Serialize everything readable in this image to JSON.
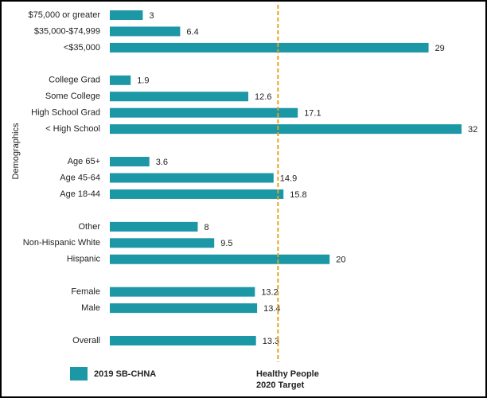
{
  "chart_data": {
    "type": "barh",
    "ylabel": "Demographics",
    "categories": [
      "$75,000 or greater",
      "$35,000-$74,999",
      "<$35,000",
      null,
      "College Grad",
      "Some College",
      "High School Grad",
      "< High School",
      null,
      "Age 65+",
      "Age 45-64",
      "Age 18-44",
      null,
      "Other",
      "Non-Hispanic White",
      "Hispanic",
      null,
      "Female",
      "Male",
      null,
      "Overall"
    ],
    "series": [
      {
        "name": "2019 SB-CHNA",
        "color": "#1b97a6",
        "values": [
          3,
          6.4,
          29,
          null,
          1.9,
          12.6,
          17.1,
          32,
          null,
          3.6,
          14.9,
          15.8,
          null,
          8,
          9.5,
          20,
          null,
          13.2,
          13.4,
          null,
          13.3
        ]
      }
    ],
    "xlim": [
      0,
      32
    ],
    "target": {
      "value": 15.3,
      "color": "#e8a31e",
      "label": [
        "Healthy People",
        "2020 Target"
      ]
    }
  }
}
